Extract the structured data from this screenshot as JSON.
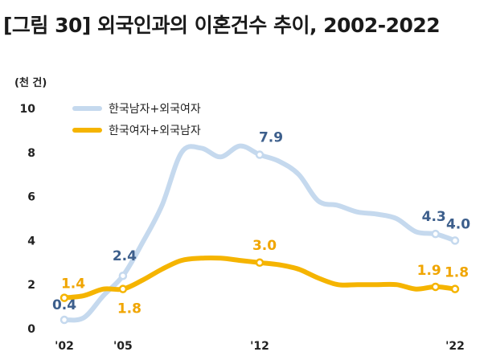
{
  "title": "[그림  30]  외국인과의 이혼건수 추이, 2002-2022",
  "chart_data": {
    "type": "line",
    "unit_label": "(천 건)",
    "ylim": [
      0,
      10
    ],
    "yticks": [
      "0",
      "2",
      "4",
      "6",
      "8",
      "10"
    ],
    "xticks": [
      {
        "year": 2002,
        "label": "'02"
      },
      {
        "year": 2005,
        "label": "'05"
      },
      {
        "year": 2012,
        "label": "'12"
      },
      {
        "year": 2022,
        "label": "'22"
      }
    ],
    "series": [
      {
        "name": "한국남자+외국여자",
        "color": "#c5d9ee",
        "label_color": "#3d5f8c",
        "x": [
          2002,
          2003,
          2004,
          2005,
          2006,
          2007,
          2008,
          2009,
          2010,
          2011,
          2012,
          2013,
          2014,
          2015,
          2016,
          2017,
          2018,
          2019,
          2020,
          2021,
          2022
        ],
        "values": [
          0.4,
          0.5,
          1.5,
          2.4,
          3.9,
          5.6,
          8.0,
          8.2,
          7.8,
          8.3,
          7.9,
          7.6,
          7.0,
          5.8,
          5.6,
          5.3,
          5.2,
          5.0,
          4.4,
          4.3,
          4.0
        ],
        "labels": [
          {
            "year": 2002,
            "text": "0.4"
          },
          {
            "year": 2005,
            "text": "2.4"
          },
          {
            "year": 2012,
            "text": "7.9"
          },
          {
            "year": 2021,
            "text": "4.3"
          },
          {
            "year": 2022,
            "text": "4.0"
          }
        ]
      },
      {
        "name": "한국여자+외국남자",
        "color": "#f5b400",
        "label_color": "#f0a500",
        "x": [
          2002,
          2003,
          2004,
          2005,
          2006,
          2007,
          2008,
          2009,
          2010,
          2011,
          2012,
          2013,
          2014,
          2015,
          2016,
          2017,
          2018,
          2019,
          2020,
          2021,
          2022
        ],
        "values": [
          1.4,
          1.5,
          1.8,
          1.8,
          2.2,
          2.7,
          3.1,
          3.2,
          3.2,
          3.1,
          3.0,
          2.9,
          2.7,
          2.3,
          2.0,
          2.0,
          2.0,
          2.0,
          1.8,
          1.9,
          1.8
        ],
        "labels": [
          {
            "year": 2002,
            "text": "1.4"
          },
          {
            "year": 2005,
            "text": "1.8"
          },
          {
            "year": 2012,
            "text": "3.0"
          },
          {
            "year": 2021,
            "text": "1.9"
          },
          {
            "year": 2022,
            "text": "1.8"
          }
        ]
      }
    ]
  }
}
